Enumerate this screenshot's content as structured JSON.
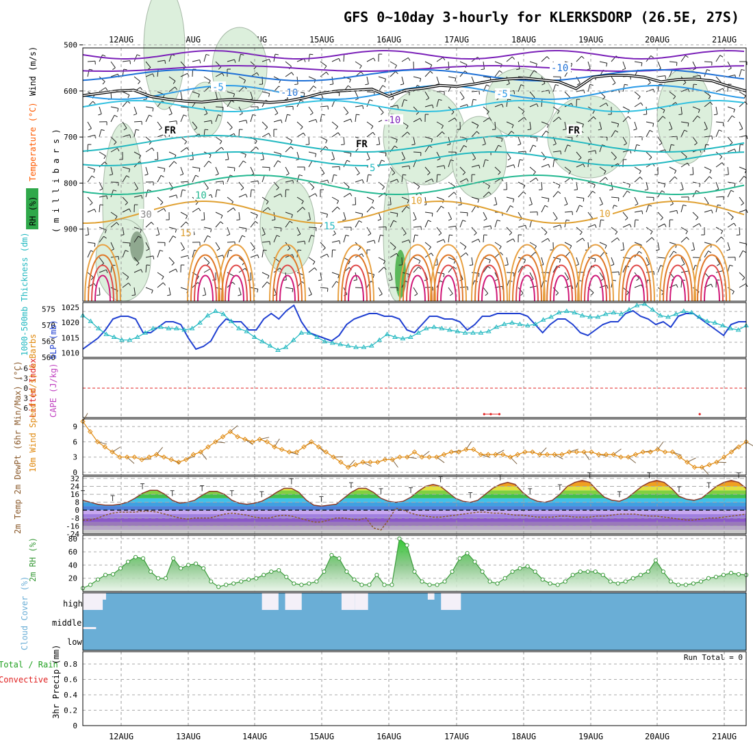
{
  "title": "GFS 0~10day 3-hourly for KLERKSDORP (26.5E, 27S)",
  "colors": {
    "slp": "#1f3fd1",
    "thickness": "#20b8c0",
    "lifted_index": "#e02020",
    "cape": "#c040c0",
    "wind10": "#e08a10",
    "barb": "#7a6040",
    "cloud": "#6aaed6",
    "rh": "#3a9a3a",
    "dewpt": "#8b5a2b",
    "precip_rain": "#20a020",
    "precip_conv": "#e02020"
  },
  "chart_data": [
    {
      "id": "upper_air",
      "type": "heatmap",
      "ylabel_parts": {
        "wind": "Wind (m/s)",
        "temp": "Temperature (°C)",
        "rh": "RH (%)",
        "unit": "( m i l l i b a r s )"
      },
      "y_ticks": [
        500,
        600,
        700,
        800,
        900
      ],
      "ylim": [
        1000,
        450
      ],
      "contour_labels": [
        "-10",
        "-5",
        "-10",
        "-5",
        "-10",
        "FR",
        "FR",
        "FR",
        "5",
        "10",
        "15",
        "10",
        "15",
        "10",
        "30"
      ],
      "freezing_level_mb": [
        610,
        605,
        600,
        598,
        612,
        618,
        622,
        624,
        620,
        618,
        622,
        625,
        622,
        615,
        605,
        600,
        598,
        596,
        612,
        598,
        594,
        588,
        590,
        585,
        578,
        574,
        572,
        576,
        580,
        595,
        570,
        566,
        566,
        570,
        580,
        575,
        574,
        578,
        590,
        600
      ]
    },
    {
      "id": "slp_thickness",
      "type": "line",
      "ylabel_left": "1000-500mb Thickness (dm)",
      "ylabel_right": "SLP (mb)",
      "left_ticks": [
        560,
        565,
        570,
        575
      ],
      "right_ticks": [
        1010,
        1015,
        1020,
        1025
      ],
      "series": [
        {
          "name": "SLP (mb)",
          "axis": "right",
          "values": [
            1011,
            1013,
            1015,
            1018,
            1022,
            1023,
            1023,
            1022,
            1017,
            1017,
            1019,
            1021,
            1021,
            1020,
            1015,
            1011,
            1012,
            1014,
            1019,
            1022,
            1021,
            1021,
            1018,
            1018,
            1022,
            1024,
            1022,
            1025,
            1027,
            1021,
            1017,
            1016,
            1015,
            1014,
            1016,
            1020,
            1022,
            1023,
            1024,
            1024,
            1023,
            1023,
            1022,
            1018,
            1017,
            1020,
            1023,
            1023,
            1022,
            1022,
            1021,
            1018,
            1020,
            1023,
            1023,
            1024,
            1024,
            1024,
            1024,
            1023,
            1020,
            1017,
            1020,
            1022,
            1022,
            1020,
            1017,
            1016,
            1018,
            1020,
            1021,
            1021,
            1024,
            1025,
            1023,
            1022,
            1020,
            1021,
            1019,
            1023,
            1024,
            1024,
            1022,
            1020,
            1018,
            1016,
            1020,
            1021,
            1021
          ]
        },
        {
          "name": "1000-500mb Thickness (dm)",
          "axis": "left",
          "values": [
            573.5,
            571.5,
            569,
            567,
            566,
            565,
            565,
            566,
            567.5,
            569,
            569.5,
            569,
            569,
            568.5,
            569,
            571,
            573.5,
            575,
            574,
            571.5,
            569,
            568,
            566,
            564.5,
            563,
            561.5,
            562.5,
            565,
            567.5,
            567.5,
            566,
            564.5,
            564,
            563.5,
            563,
            562.5,
            562.5,
            563,
            565,
            567,
            566,
            565.5,
            566,
            567.5,
            569,
            569.5,
            569,
            568.5,
            568,
            567.5,
            567.5,
            567.5,
            568,
            569.5,
            570.5,
            571,
            570.5,
            570,
            570.5,
            572,
            573,
            574.5,
            575,
            574.5,
            573.5,
            573,
            573,
            574,
            574.5,
            574,
            575.5,
            577,
            577.5,
            575.5,
            573.5,
            573,
            574,
            575,
            574.5,
            573,
            571.5,
            571,
            570,
            569,
            568.5,
            570
          ]
        }
      ]
    },
    {
      "id": "lifted_cape",
      "type": "line",
      "ylabel_left": "Lifted Index",
      "ylabel_right": "CAPE (J/kg)",
      "ticks": [
        "-6",
        "-3",
        "0",
        "3",
        "6"
      ],
      "ylim": [
        -6,
        6
      ],
      "series": [
        {
          "name": "CAPE (J/kg)",
          "note_points": [
            [
              0.605,
              0
            ],
            [
              0.615,
              0
            ],
            [
              0.628,
              0
            ],
            [
              0.93,
              0
            ]
          ]
        }
      ]
    },
    {
      "id": "wind10",
      "type": "line",
      "ylabel": "10m Wind Speed (m/s) & Barbs",
      "ticks": [
        0,
        3,
        6,
        9
      ],
      "ylim": [
        0,
        10.5
      ],
      "series": [
        {
          "name": "10m Wind Speed (m/s)",
          "values": [
            10,
            8,
            6,
            5,
            4,
            3,
            3,
            3,
            2.5,
            3,
            3.5,
            3,
            2.5,
            2,
            2.5,
            3.5,
            4,
            5,
            6,
            7,
            8,
            7,
            6.5,
            6,
            6.5,
            6,
            5,
            4.5,
            4,
            4,
            5,
            6,
            5,
            4,
            3,
            2,
            1,
            1.5,
            2,
            2,
            2,
            2.5,
            2.5,
            3,
            3,
            4,
            3,
            3,
            3,
            3.5,
            4,
            4,
            4.5,
            4.5,
            3.5,
            3.5,
            3.5,
            3.5,
            3,
            3.5,
            4,
            4,
            3.5,
            3.5,
            3.5,
            3.5,
            4,
            4,
            4,
            4,
            3.5,
            3.5,
            3.5,
            3,
            3,
            3.5,
            4,
            4,
            4.5,
            4,
            4,
            3,
            2,
            1,
            1,
            1.5,
            2,
            3,
            4,
            5,
            6
          ]
        }
      ]
    },
    {
      "id": "temp_dewpt",
      "type": "area",
      "ylabel": "2m Temp 2m DewPt (6hr Min/Max) (°C)",
      "ticks": [
        -24,
        -16,
        -8,
        0,
        8,
        16,
        24,
        32
      ],
      "ylim": [
        -24,
        34
      ],
      "series": [
        {
          "name": "2m Temp",
          "values": [
            10,
            8,
            6,
            5,
            5,
            6,
            8,
            12,
            17,
            20,
            20,
            16,
            10,
            7,
            8,
            10,
            15,
            19,
            19,
            16,
            10,
            7,
            6,
            7,
            9,
            13,
            18,
            22,
            22,
            18,
            10,
            5,
            4,
            5,
            6,
            12,
            18,
            22,
            22,
            18,
            12,
            9,
            8,
            9,
            13,
            19,
            24,
            26,
            24,
            18,
            12,
            9,
            8,
            10,
            16,
            22,
            26,
            28,
            26,
            18,
            12,
            9,
            8,
            10,
            16,
            24,
            28,
            30,
            28,
            20,
            13,
            10,
            9,
            12,
            18,
            24,
            28,
            30,
            28,
            22,
            14,
            11,
            10,
            12,
            18,
            24,
            28,
            30,
            28,
            22
          ]
        },
        {
          "name": "2m DewPt",
          "values": [
            -10,
            -10,
            -8,
            -5,
            -3,
            -2,
            -2,
            -2,
            -1,
            -1,
            -2,
            -4,
            -6,
            -8,
            -9,
            -8,
            -8,
            -8,
            -6,
            -4,
            -3,
            -4,
            -5,
            -7,
            -8,
            -8,
            -6,
            -5,
            -6,
            -8,
            -10,
            -12,
            -12,
            -10,
            -8,
            -8,
            -9,
            -10,
            -8,
            -18,
            -20,
            -10,
            2,
            0,
            -3,
            -5,
            -6,
            -7,
            -7,
            -6,
            -5,
            -4,
            -3,
            -2,
            -2,
            -3,
            -3,
            -4,
            -5,
            -5,
            -6,
            -7,
            -7,
            -7,
            -6,
            -6,
            -7,
            -7,
            -7,
            -6,
            -6,
            -5,
            -4,
            -4,
            -4,
            -5,
            -6,
            -6,
            -7,
            -8,
            -9,
            -10,
            -10,
            -9,
            -8,
            -8,
            -7,
            -6,
            -5,
            -4
          ]
        }
      ]
    },
    {
      "id": "rh2m",
      "type": "area",
      "ylabel": "2m RH (%)",
      "ticks": [
        20,
        40,
        60,
        80
      ],
      "ylim": [
        0,
        85
      ],
      "series": [
        {
          "name": "2m RH (%)",
          "values": [
            5,
            10,
            18,
            25,
            26,
            35,
            45,
            52,
            50,
            30,
            20,
            20,
            50,
            35,
            40,
            42,
            35,
            15,
            7,
            10,
            12,
            15,
            18,
            20,
            25,
            30,
            32,
            22,
            12,
            10,
            12,
            15,
            30,
            55,
            50,
            30,
            18,
            10,
            10,
            25,
            10,
            10,
            80,
            70,
            30,
            15,
            10,
            10,
            15,
            30,
            50,
            58,
            45,
            30,
            15,
            12,
            20,
            30,
            35,
            38,
            30,
            18,
            12,
            10,
            15,
            25,
            30,
            30,
            30,
            25,
            15,
            12,
            15,
            20,
            25,
            30,
            47,
            30,
            15,
            10,
            10,
            12,
            15,
            20,
            22,
            25,
            28,
            26,
            25
          ]
        }
      ]
    },
    {
      "id": "cloud",
      "type": "bar",
      "ylabel": "Cloud Cover (%)",
      "levels": [
        "high",
        "middle",
        "low"
      ],
      "gaps": [
        [
          0.0,
          0.03,
          0
        ],
        [
          0.03,
          0.035,
          0
        ],
        [
          0.27,
          0.295,
          0
        ],
        [
          0.305,
          0.33,
          0
        ],
        [
          0.39,
          0.41,
          0
        ],
        [
          0.41,
          0.43,
          0
        ],
        [
          0.52,
          0.53,
          0
        ],
        [
          0.54,
          0.57,
          0
        ],
        [
          0.0,
          0.02,
          1
        ]
      ]
    },
    {
      "id": "precip",
      "type": "bar",
      "ylabel_parts": [
        "Total / Rain",
        "Convective",
        "3hr Precip (mm)"
      ],
      "ticks": [
        "0",
        "0.2",
        "0.4",
        "0.6",
        "0.8"
      ],
      "ylim": [
        0,
        0.96
      ],
      "values": [],
      "run_total": "Run Total = 0"
    }
  ],
  "dates": [
    "12AUG",
    "13AUG",
    "14AUG",
    "15AUG",
    "16AUG",
    "17AUG",
    "18AUG",
    "19AUG",
    "20AUG",
    "21AUG"
  ]
}
